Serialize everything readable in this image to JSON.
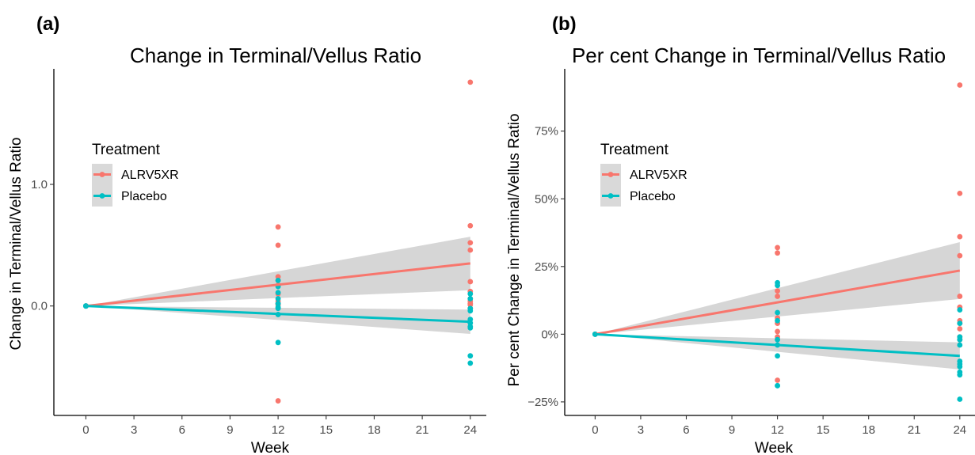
{
  "panels": [
    {
      "tag": "(a)"
    },
    {
      "tag": "(b)"
    }
  ],
  "chart_data": [
    {
      "type": "scatter",
      "title": "Change in Terminal/Vellus Ratio",
      "xlabel": "Week",
      "ylabel": "Change in Terminal/Vellus Ratio",
      "xlim": [
        -2,
        25
      ],
      "ylim": [
        -0.9,
        1.95
      ],
      "xticks": [
        0,
        3,
        6,
        9,
        12,
        15,
        18,
        21,
        24
      ],
      "xtick_labels": [
        "0",
        "3",
        "6",
        "9",
        "12",
        "15",
        "18",
        "21",
        "24"
      ],
      "yticks": [
        0,
        1
      ],
      "ytick_labels": [
        "0.0",
        "1.0"
      ],
      "grid": false,
      "legend": {
        "title": "Treatment",
        "placement": "top-left"
      },
      "series": [
        {
          "name": "ALRV5XR",
          "color": "#F8766D",
          "points": [
            [
              0,
              0
            ],
            [
              0,
              0
            ],
            [
              0,
              0
            ],
            [
              12,
              0.65
            ],
            [
              12,
              0.5
            ],
            [
              12,
              0.24
            ],
            [
              12,
              0.21
            ],
            [
              12,
              0.17
            ],
            [
              12,
              0.1
            ],
            [
              12,
              0.04
            ],
            [
              12,
              0.02
            ],
            [
              12,
              0.01
            ],
            [
              12,
              -0.78
            ],
            [
              24,
              1.84
            ],
            [
              24,
              0.66
            ],
            [
              24,
              0.52
            ],
            [
              24,
              0.46
            ],
            [
              24,
              0.2
            ],
            [
              24,
              0.12
            ],
            [
              24,
              0.06
            ],
            [
              24,
              0.04
            ],
            [
              24,
              0.02
            ],
            [
              24,
              0.01
            ],
            [
              24,
              -0.02
            ]
          ],
          "trend": {
            "x": [
              0,
              24
            ],
            "y": [
              0,
              0.35
            ],
            "ci_low": [
              0,
              0.13
            ],
            "ci_high": [
              0,
              0.57
            ]
          }
        },
        {
          "name": "Placebo",
          "color": "#00BFC4",
          "points": [
            [
              0,
              0
            ],
            [
              0,
              0
            ],
            [
              0,
              0
            ],
            [
              12,
              0.21
            ],
            [
              12,
              0.16
            ],
            [
              12,
              0.11
            ],
            [
              12,
              0.06
            ],
            [
              12,
              0.02
            ],
            [
              12,
              -0.01
            ],
            [
              12,
              -0.02
            ],
            [
              12,
              -0.07
            ],
            [
              12,
              -0.3
            ],
            [
              24,
              0.1
            ],
            [
              24,
              0.06
            ],
            [
              24,
              -0.02
            ],
            [
              24,
              -0.04
            ],
            [
              24,
              -0.11
            ],
            [
              24,
              -0.14
            ],
            [
              24,
              -0.17
            ],
            [
              24,
              -0.18
            ],
            [
              24,
              -0.41
            ],
            [
              24,
              -0.47
            ]
          ],
          "trend": {
            "x": [
              0,
              24
            ],
            "y": [
              0,
              -0.13
            ],
            "ci_low": [
              0,
              -0.23
            ],
            "ci_high": [
              0,
              -0.03
            ]
          }
        }
      ]
    },
    {
      "type": "scatter",
      "title": "Per cent Change in Terminal/Vellus Ratio",
      "xlabel": "Week",
      "ylabel": "Per cent Change in Terminal/Vellus Ratio",
      "xlim": [
        -2,
        25
      ],
      "ylim": [
        -0.3,
        0.98
      ],
      "xticks": [
        0,
        3,
        6,
        9,
        12,
        15,
        18,
        21,
        24
      ],
      "xtick_labels": [
        "0",
        "3",
        "6",
        "9",
        "12",
        "15",
        "18",
        "21",
        "24"
      ],
      "yticks": [
        -0.25,
        0,
        0.25,
        0.5,
        0.75
      ],
      "ytick_labels": [
        "−25%",
        "0%",
        "25%",
        "50%",
        "75%"
      ],
      "grid": false,
      "legend": {
        "title": "Treatment",
        "placement": "top-left"
      },
      "series": [
        {
          "name": "ALRV5XR",
          "color": "#F8766D",
          "points": [
            [
              0,
              0
            ],
            [
              0,
              0
            ],
            [
              0,
              0
            ],
            [
              12,
              0.32
            ],
            [
              12,
              0.3
            ],
            [
              12,
              0.16
            ],
            [
              12,
              0.14
            ],
            [
              12,
              0.06
            ],
            [
              12,
              0.04
            ],
            [
              12,
              0.01
            ],
            [
              12,
              -0.01
            ],
            [
              12,
              -0.17
            ],
            [
              24,
              0.92
            ],
            [
              24,
              0.52
            ],
            [
              24,
              0.36
            ],
            [
              24,
              0.29
            ],
            [
              24,
              0.14
            ],
            [
              24,
              0.1
            ],
            [
              24,
              0.05
            ],
            [
              24,
              0.04
            ],
            [
              24,
              0.02
            ],
            [
              24,
              -0.01
            ],
            [
              24,
              -0.02
            ]
          ],
          "trend": {
            "x": [
              0,
              24
            ],
            "y": [
              0,
              0.235
            ],
            "ci_low": [
              0,
              0.13
            ],
            "ci_high": [
              0,
              0.34
            ]
          }
        },
        {
          "name": "Placebo",
          "color": "#00BFC4",
          "points": [
            [
              0,
              0
            ],
            [
              0,
              0
            ],
            [
              0,
              0
            ],
            [
              12,
              0.19
            ],
            [
              12,
              0.18
            ],
            [
              12,
              0.08
            ],
            [
              12,
              0.05
            ],
            [
              12,
              -0.02
            ],
            [
              12,
              -0.04
            ],
            [
              12,
              -0.08
            ],
            [
              12,
              -0.19
            ],
            [
              12,
              -0.19
            ],
            [
              24,
              0.09
            ],
            [
              24,
              0.04
            ],
            [
              24,
              -0.01
            ],
            [
              24,
              -0.02
            ],
            [
              24,
              -0.04
            ],
            [
              24,
              -0.1
            ],
            [
              24,
              -0.11
            ],
            [
              24,
              -0.12
            ],
            [
              24,
              -0.14
            ],
            [
              24,
              -0.15
            ],
            [
              24,
              -0.24
            ]
          ],
          "trend": {
            "x": [
              0,
              24
            ],
            "y": [
              0,
              -0.08
            ],
            "ci_low": [
              0,
              -0.13
            ],
            "ci_high": [
              0,
              -0.03
            ]
          }
        }
      ]
    }
  ]
}
